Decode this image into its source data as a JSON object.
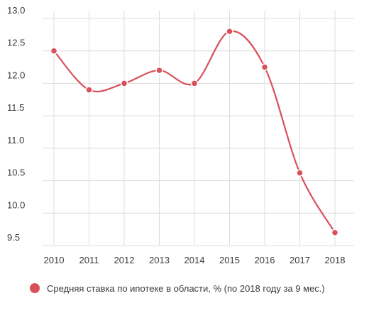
{
  "chart_data": {
    "type": "line",
    "x": [
      "2010",
      "2011",
      "2012",
      "2013",
      "2014",
      "2015",
      "2016",
      "2017",
      "2018"
    ],
    "series": [
      {
        "name": "Средняя ставка по ипотеке в области, % (по 2018 году за 9 мес.)",
        "values": [
          12.5,
          11.9,
          12.0,
          12.2,
          12.0,
          12.8,
          12.25,
          10.62,
          9.7
        ],
        "color": "#d9505a"
      }
    ],
    "y_ticks": [
      "9.5",
      "10.0",
      "10.5",
      "11.0",
      "11.5",
      "12.0",
      "12.5",
      "13.0"
    ],
    "ylim": [
      9.5,
      13.0
    ],
    "grid": true,
    "legend_position": "bottom-left",
    "smooth": true
  }
}
